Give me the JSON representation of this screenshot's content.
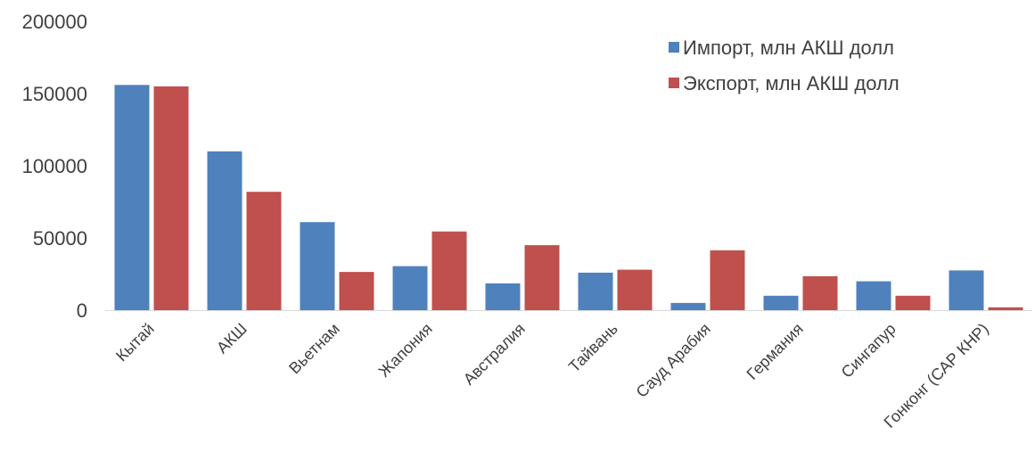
{
  "chart_data": {
    "type": "bar",
    "categories": [
      "Кытай",
      "АКШ",
      "Вьетнам",
      "Жапония",
      "Австралия",
      "Тайвань",
      "Сауд Арабия",
      "Германия",
      "Сингапур",
      "Гонконг (САР КНР)"
    ],
    "series": [
      {
        "name": "Импорт, млн АКШ долл",
        "color": "#4f81bd",
        "values": [
          156000,
          110000,
          61000,
          30500,
          18500,
          26000,
          5000,
          10000,
          20000,
          27500
        ]
      },
      {
        "name": "Экспорт, млн АКШ долл",
        "color": "#c0504d",
        "values": [
          155000,
          82000,
          26500,
          54500,
          45000,
          28000,
          41500,
          23500,
          10000,
          2000
        ]
      }
    ],
    "yticks": [
      "0",
      "50000",
      "100000",
      "150000",
      "200000"
    ],
    "ylim": [
      0,
      200000
    ],
    "grid": false,
    "legend_position": "top-right"
  }
}
